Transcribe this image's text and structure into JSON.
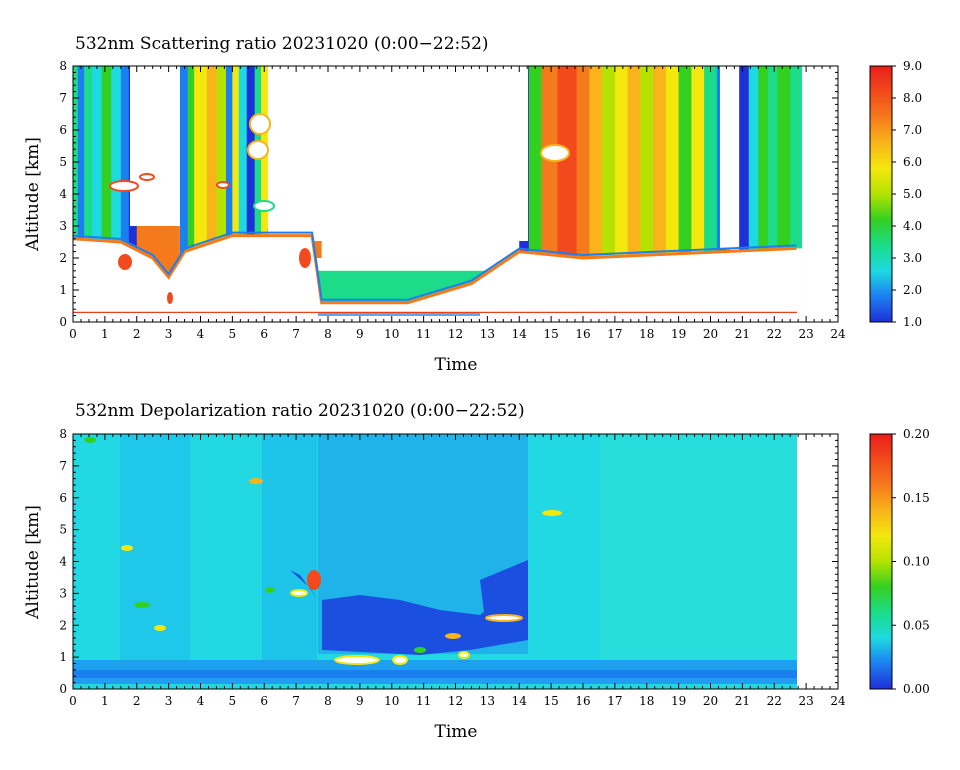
{
  "chart_data": [
    {
      "type": "heatmap",
      "title": "532nm Scattering ratio  20231020 (0:00−22:52)",
      "xlabel": "Time",
      "ylabel": "Altitude [km]",
      "xlim": [
        0,
        24
      ],
      "ylim": [
        0,
        8
      ],
      "x_ticks": [
        "0",
        "1",
        "2",
        "3",
        "4",
        "5",
        "6",
        "7",
        "8",
        "9",
        "10",
        "11",
        "12",
        "13",
        "14",
        "15",
        "16",
        "17",
        "18",
        "19",
        "20",
        "21",
        "22",
        "23",
        "24"
      ],
      "y_ticks": [
        "0",
        "1",
        "2",
        "3",
        "4",
        "5",
        "6",
        "7",
        "8"
      ],
      "data_end_time": 22.87,
      "colorbar": {
        "range": [
          1.0,
          9.0
        ],
        "ticks": [
          "1.0",
          "2.0",
          "3.0",
          "4.0",
          "5.0",
          "6.0",
          "7.0",
          "8.0",
          "9.0"
        ]
      },
      "cloud_base_km": [
        {
          "t": 0.0,
          "z": 2.6
        },
        {
          "t": 1.5,
          "z": 2.5
        },
        {
          "t": 2.5,
          "z": 2.0
        },
        {
          "t": 3.0,
          "z": 1.4
        },
        {
          "t": 3.5,
          "z": 2.2
        },
        {
          "t": 5.0,
          "z": 2.7
        },
        {
          "t": 7.5,
          "z": 2.7
        },
        {
          "t": 7.8,
          "z": 0.6
        },
        {
          "t": 10.5,
          "z": 0.6
        },
        {
          "t": 12.5,
          "z": 1.2
        },
        {
          "t": 14.0,
          "z": 2.2
        },
        {
          "t": 16.0,
          "z": 2.0
        },
        {
          "t": 22.7,
          "z": 2.3
        }
      ],
      "reference_line_km": 0.3
    },
    {
      "type": "heatmap",
      "title": "532nm Depolarization ratio  20231020 (0:00−22:52)",
      "xlabel": "Time",
      "ylabel": "Altitude [km]",
      "xlim": [
        0,
        24
      ],
      "ylim": [
        0,
        8
      ],
      "x_ticks": [
        "0",
        "1",
        "2",
        "3",
        "4",
        "5",
        "6",
        "7",
        "8",
        "9",
        "10",
        "11",
        "12",
        "13",
        "14",
        "15",
        "16",
        "17",
        "18",
        "19",
        "20",
        "21",
        "22",
        "23",
        "24"
      ],
      "y_ticks": [
        "0",
        "1",
        "2",
        "3",
        "4",
        "5",
        "6",
        "7",
        "8"
      ],
      "data_end_time": 22.87,
      "colorbar": {
        "range": [
          0.0,
          0.2
        ],
        "ticks": [
          "0.00",
          "0.05",
          "0.10",
          "0.15",
          "0.20"
        ]
      },
      "background_value": 0.05
    }
  ],
  "colors": {
    "scale": [
      "#1f30d8",
      "#1c7ff0",
      "#1ed9e0",
      "#1cdc8a",
      "#34d021",
      "#b5e200",
      "#f3e80e",
      "#f8b41a",
      "#f57a1c",
      "#f24a1c",
      "#e81e1c"
    ]
  }
}
